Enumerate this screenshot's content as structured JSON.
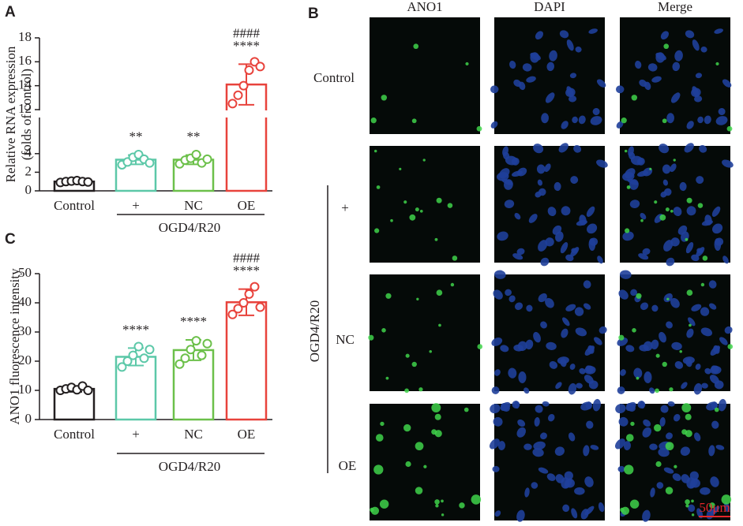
{
  "chart_data": [
    {
      "type": "bar",
      "panel": "A",
      "ylabel": [
        "Relative RNA expression",
        "(folds of control)"
      ],
      "categories": [
        "Control",
        "+",
        "NC",
        "OE"
      ],
      "group_label": "OGD4/R20",
      "values": [
        1.0,
        3.35,
        3.35,
        14.1
      ],
      "errors": [
        0.15,
        0.5,
        0.5,
        1.7
      ],
      "points": [
        [
          0.9,
          1.0,
          1.05,
          1.1,
          1.0,
          0.95
        ],
        [
          2.8,
          3.1,
          3.6,
          3.9,
          3.4,
          3.0
        ],
        [
          2.9,
          3.3,
          3.5,
          3.9,
          3.0,
          3.4
        ],
        [
          12.5,
          13.2,
          14.0,
          15.3,
          16.0,
          15.6
        ]
      ],
      "colors": [
        "#231f20",
        "#5cc8a8",
        "#6cc04a",
        "#e8433c"
      ],
      "ylim": [
        0,
        18
      ],
      "axis_break": [
        7.8,
        12
      ],
      "yticks": [
        0,
        2,
        4,
        12,
        14,
        16,
        18
      ],
      "annotations": [
        {
          "category": "+",
          "text": "**"
        },
        {
          "category": "NC",
          "text": "**"
        },
        {
          "category": "OE",
          "text": "****"
        },
        {
          "category": "OE",
          "text": "####"
        }
      ]
    },
    {
      "type": "bar",
      "panel": "C",
      "ylabel": [
        "ANO1 fluorescence intensity"
      ],
      "categories": [
        "Control",
        "+",
        "NC",
        "OE"
      ],
      "group_label": "OGD4/R20",
      "values": [
        10.5,
        21.5,
        23.8,
        40.2
      ],
      "errors": [
        1.0,
        3.0,
        3.5,
        4.5
      ],
      "points": [
        [
          10.0,
          10.5,
          11.0,
          10.2,
          11.5,
          10.0
        ],
        [
          18.0,
          20.0,
          22.0,
          25.0,
          21.0,
          24.0
        ],
        [
          19.0,
          21.0,
          24.0,
          27.0,
          22.0,
          26.0
        ],
        [
          36.0,
          38.0,
          40.0,
          43.0,
          45.5,
          38.5
        ]
      ],
      "colors": [
        "#231f20",
        "#5cc8a8",
        "#6cc04a",
        "#e8433c"
      ],
      "ylim": [
        0,
        50
      ],
      "yticks": [
        0,
        10,
        20,
        30,
        40,
        50
      ],
      "annotations": [
        {
          "category": "+",
          "text": "****"
        },
        {
          "category": "NC",
          "text": "****"
        },
        {
          "category": "OE",
          "text": "****"
        },
        {
          "category": "OE",
          "text": "####"
        }
      ]
    }
  ],
  "panel_b": {
    "panel": "B",
    "columns": [
      "ANO1",
      "DAPI",
      "Merge"
    ],
    "rows": [
      "Control",
      "+",
      "NC",
      "OE"
    ],
    "group_label": "OGD4/R20",
    "scale_bar": "50μm"
  }
}
